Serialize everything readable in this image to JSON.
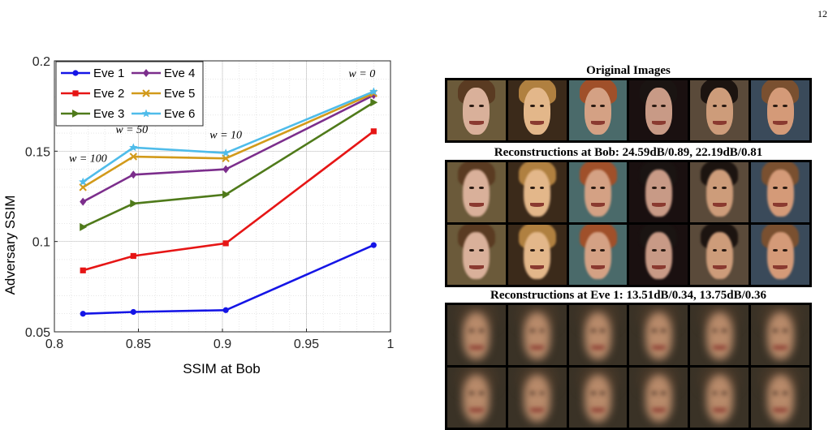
{
  "page_number": "12",
  "chart_data": {
    "type": "line",
    "xlabel": "SSIM at Bob",
    "ylabel": "Adversary SSIM",
    "xlim": [
      0.8,
      1.0
    ],
    "ylim": [
      0.05,
      0.2
    ],
    "xticks": [
      "0.8",
      "0.85",
      "0.9",
      "0.95",
      "1"
    ],
    "yticks": [
      "0.05",
      "0.1",
      "0.15",
      "0.2"
    ],
    "grid": true,
    "legend_position": "top-left",
    "x": [
      0.817,
      0.847,
      0.902,
      0.99
    ],
    "series": [
      {
        "name": "Eve 1",
        "color": "#1515e6",
        "marker": "circle",
        "values": [
          0.06,
          0.061,
          0.062,
          0.098
        ]
      },
      {
        "name": "Eve 2",
        "color": "#e61515",
        "marker": "square",
        "values": [
          0.084,
          0.092,
          0.099,
          0.161
        ]
      },
      {
        "name": "Eve 3",
        "color": "#4f7a1a",
        "marker": "triangle-right",
        "values": [
          0.108,
          0.121,
          0.126,
          0.177
        ]
      },
      {
        "name": "Eve 4",
        "color": "#7c2e8c",
        "marker": "diamond",
        "values": [
          0.122,
          0.137,
          0.14,
          0.181
        ]
      },
      {
        "name": "Eve 5",
        "color": "#d29a1a",
        "marker": "x",
        "values": [
          0.13,
          0.147,
          0.146,
          0.182
        ]
      },
      {
        "name": "Eve 6",
        "color": "#4fbcea",
        "marker": "star",
        "values": [
          0.133,
          0.152,
          0.149,
          0.183
        ]
      }
    ],
    "annotations": [
      {
        "text": "w = 100",
        "x": 0.82,
        "y": 0.144
      },
      {
        "text": "w = 50",
        "x": 0.846,
        "y": 0.16
      },
      {
        "text": "w = 10",
        "x": 0.902,
        "y": 0.157
      },
      {
        "text": "w = 0",
        "x": 0.983,
        "y": 0.191
      }
    ]
  },
  "image_panel": {
    "caption_original": "Original Images",
    "caption_bob": "Reconstructions at Bob: 24.59dB/0.89, 22.19dB/0.81",
    "caption_eve": "Reconstructions at Eve 1: 13.51dB/0.34, 13.75dB/0.36",
    "faces": [
      {
        "bg": "#6b5a3a",
        "skin": "#d9b09a",
        "hair": "#5a3b22"
      },
      {
        "bg": "#3b2a1a",
        "skin": "#e3b78a",
        "hair": "#b08040"
      },
      {
        "bg": "#4a6a6a",
        "skin": "#d4a184",
        "hair": "#a0502a"
      },
      {
        "bg": "#1a1010",
        "skin": "#c89a86",
        "hair": "#1a1412"
      },
      {
        "bg": "#5a4a3a",
        "skin": "#cd9c7a",
        "hair": "#1c1410"
      },
      {
        "bg": "#3a4a5a",
        "skin": "#d49a78",
        "hair": "#7a5030"
      }
    ],
    "blur_face": {
      "bg": "#3a3226",
      "skin": "#b88a6a",
      "hair": "#4a3a2a"
    }
  }
}
